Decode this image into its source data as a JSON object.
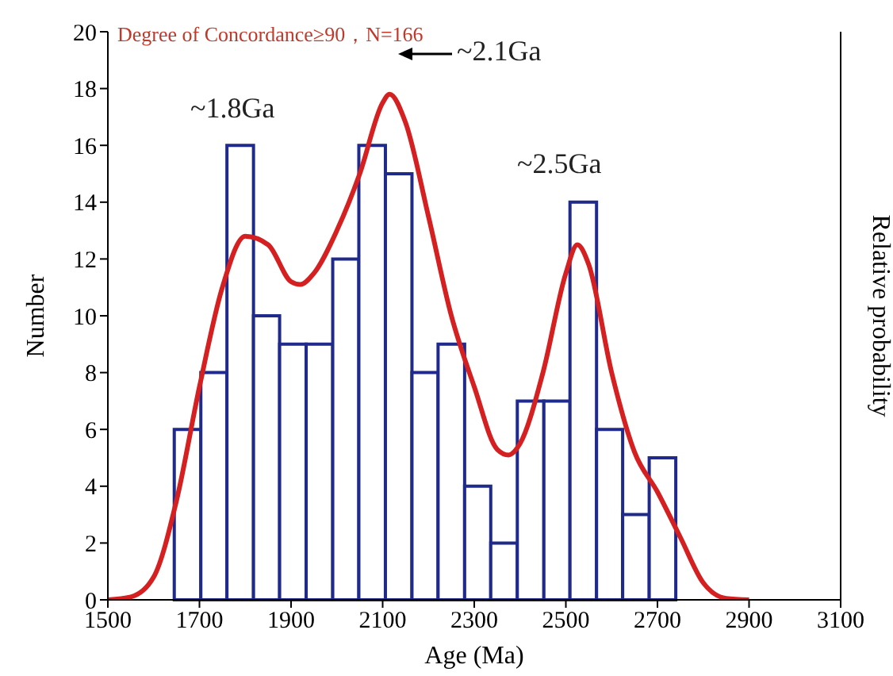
{
  "chart_data": {
    "type": "histogram",
    "xlabel": "Age (Ma)",
    "ylabel": "Number",
    "y2label": "Relative probability",
    "bins": [
      1645,
      1703,
      1760,
      1818,
      1875,
      1933,
      1991,
      2048,
      2106,
      2164,
      2221,
      2279,
      2336,
      2394,
      2452,
      2509,
      2567,
      2624,
      2682,
      2740
    ],
    "values": [
      6,
      8,
      16,
      10,
      9,
      9,
      12,
      16,
      15,
      8,
      9,
      4,
      2,
      7,
      7,
      14,
      6,
      3,
      5
    ],
    "color": "#1f2a8a",
    "series": [
      {
        "type": "line",
        "color": "#d42020",
        "x": [
          1500,
          1550,
          1600,
          1650,
          1700,
          1750,
          1800,
          1850,
          1900,
          1920,
          1950,
          2000,
          2050,
          2100,
          2115,
          2150,
          2200,
          2250,
          2300,
          2350,
          2375,
          2400,
          2450,
          2500,
          2525,
          2550,
          2600,
          2650,
          2700,
          2750,
          2800,
          2850,
          2900
        ],
        "values": [
          0,
          0.1,
          0.8,
          3.5,
          7.5,
          11,
          12.8,
          12.5,
          11.2,
          11.1,
          11.5,
          13,
          15,
          17.5,
          17.8,
          16.8,
          13.5,
          10,
          7.5,
          5.3,
          5.1,
          5.5,
          8,
          11.5,
          12.5,
          11.8,
          8,
          5.2,
          3.8,
          2.2,
          0.6,
          0.05,
          0
        ]
      }
    ],
    "xlim": [
      1500,
      3100
    ],
    "xticks": [
      1500,
      1700,
      1900,
      2100,
      2300,
      2500,
      2700,
      2900,
      3100
    ],
    "ylim": [
      0,
      20
    ],
    "yticks": [
      0,
      2,
      4,
      6,
      8,
      10,
      12,
      14,
      16,
      18,
      20
    ],
    "annotations": [
      "Degree of Concordance≥90，N=166",
      "~1.8Ga",
      "~2.1Ga",
      "~2.5Ga"
    ]
  }
}
